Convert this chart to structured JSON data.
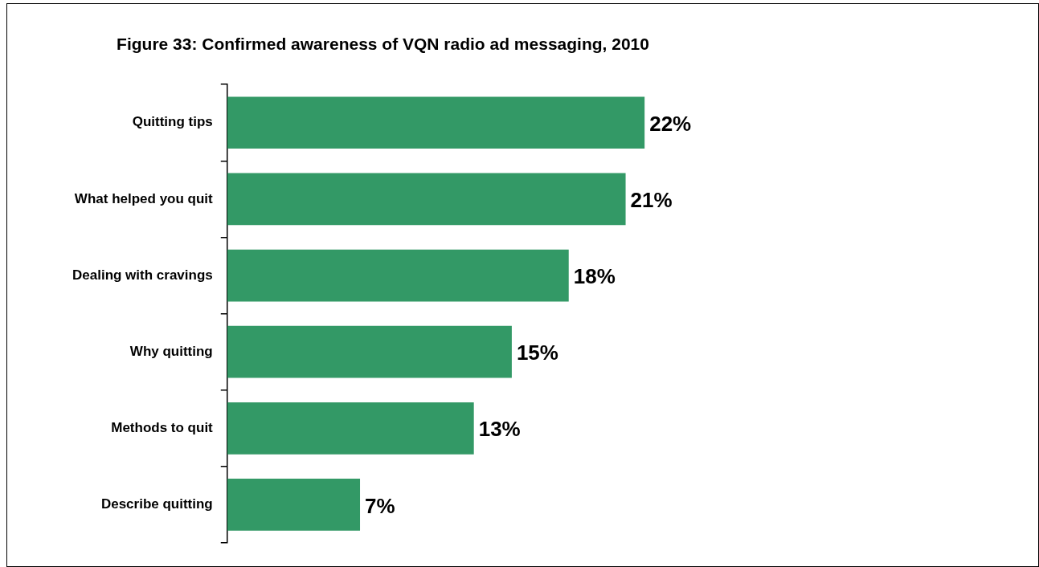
{
  "chart_data": {
    "type": "bar",
    "orientation": "horizontal",
    "title": "Figure 33: Confirmed awareness of VQN radio ad messaging, 2010",
    "categories": [
      "Quitting tips",
      "What helped you quit",
      "Dealing with cravings",
      "Why quitting",
      "Methods to quit",
      "Describe quitting"
    ],
    "values": [
      22,
      21,
      18,
      15,
      13,
      7
    ],
    "value_labels": [
      "22%",
      "21%",
      "18%",
      "15%",
      "13%",
      "7%"
    ],
    "color": "#339966",
    "grid": false,
    "legend": false
  }
}
